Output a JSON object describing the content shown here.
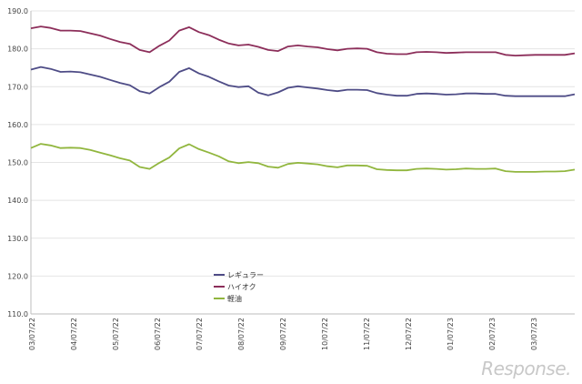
{
  "chart_data": {
    "type": "line",
    "ylim": [
      110,
      190
    ],
    "y_ticks": [
      "110.0",
      "120.0",
      "130.0",
      "140.0",
      "150.0",
      "160.0",
      "170.0",
      "180.0",
      "190.0"
    ],
    "x_labels": [
      "03/07/22",
      "04/07/22",
      "05/07/22",
      "06/07/22",
      "07/07/22",
      "08/07/22",
      "09/07/22",
      "10/07/22",
      "11/07/22",
      "12/07/22",
      "01/07/23",
      "02/07/23",
      "03/07/23"
    ],
    "grid": true,
    "legend_position": "center-left",
    "series": [
      {
        "name": "レギュラー",
        "color": "#4e4c86",
        "values": [
          174.5,
          175.2,
          174.7,
          173.9,
          174.0,
          173.8,
          173.2,
          172.6,
          171.8,
          171.0,
          170.4,
          168.8,
          168.2,
          169.9,
          171.3,
          173.9,
          174.9,
          173.5,
          172.6,
          171.4,
          170.3,
          169.9,
          170.1,
          168.4,
          167.7,
          168.5,
          169.7,
          170.1,
          169.8,
          169.5,
          169.1,
          168.8,
          169.2,
          169.2,
          169.1,
          168.3,
          167.9,
          167.6,
          167.6,
          168.1,
          168.2,
          168.1,
          167.9,
          168.0,
          168.2,
          168.2,
          168.1,
          168.1,
          167.6,
          167.5,
          167.5,
          167.5,
          167.5,
          167.5,
          167.5,
          168.0
        ]
      },
      {
        "name": "ハイオク",
        "color": "#8c2e5a",
        "values": [
          185.4,
          185.9,
          185.5,
          184.8,
          184.8,
          184.7,
          184.1,
          183.5,
          182.6,
          181.8,
          181.3,
          179.7,
          179.1,
          180.8,
          182.2,
          184.8,
          185.7,
          184.4,
          183.6,
          182.4,
          181.4,
          180.9,
          181.1,
          180.5,
          179.7,
          179.4,
          180.6,
          180.9,
          180.6,
          180.4,
          179.9,
          179.6,
          180.0,
          180.1,
          180.0,
          179.1,
          178.7,
          178.6,
          178.6,
          179.1,
          179.2,
          179.1,
          178.9,
          179.0,
          179.1,
          179.1,
          179.1,
          179.1,
          178.4,
          178.2,
          178.3,
          178.4,
          178.4,
          178.4,
          178.4,
          178.8
        ]
      },
      {
        "name": "軽油",
        "color": "#91b63e",
        "values": [
          153.8,
          154.9,
          154.5,
          153.8,
          153.9,
          153.8,
          153.3,
          152.6,
          151.9,
          151.1,
          150.5,
          148.8,
          148.3,
          149.9,
          151.3,
          153.7,
          154.8,
          153.5,
          152.6,
          151.6,
          150.3,
          149.8,
          150.1,
          149.8,
          148.9,
          148.6,
          149.6,
          149.9,
          149.7,
          149.5,
          149.0,
          148.7,
          149.2,
          149.2,
          149.1,
          148.2,
          148.0,
          147.9,
          147.9,
          148.3,
          148.4,
          148.3,
          148.1,
          148.2,
          148.4,
          148.3,
          148.3,
          148.4,
          147.7,
          147.5,
          147.5,
          147.5,
          147.6,
          147.6,
          147.7,
          148.1
        ]
      }
    ]
  },
  "watermark": "Response."
}
